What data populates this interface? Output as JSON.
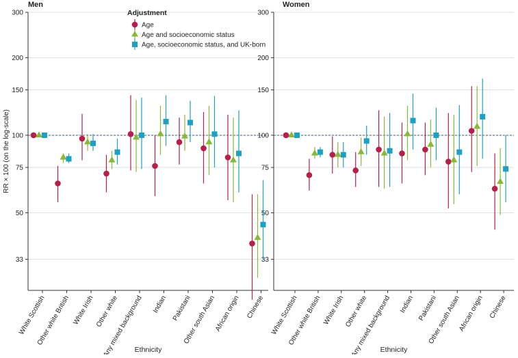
{
  "chart_data": {
    "type": "scatter",
    "subtype": "point-estimate-with-confidence-intervals",
    "ylabel": "RR × 100 (on the log-scale)",
    "xlabel": "Ethnicity",
    "yscale": "log",
    "ylim": [
      25,
      300
    ],
    "yticks": [
      33,
      50,
      75,
      100,
      150,
      200,
      300
    ],
    "reference_line": 100,
    "legend": {
      "title": "Adjustment",
      "placement": "top-left inside first panel"
    },
    "categories": [
      "White Scottish",
      "Other white British",
      "White Irish",
      "Other white",
      "Any mixed background",
      "Indian",
      "Pakistani",
      "Other south Asian",
      "African origin",
      "Chinese"
    ],
    "series_style": [
      {
        "name": "Age",
        "color": "#b5204a",
        "marker": "circle"
      },
      {
        "name": "Age and socioeconomic status",
        "color": "#8ab83a",
        "marker": "triangle"
      },
      {
        "name": "Age, socioeconomic status, and UK-born",
        "color": "#1ea0c0",
        "marker": "square"
      }
    ],
    "panels": [
      {
        "title": "Men",
        "series": [
          {
            "name": "Age",
            "values": [
              100,
              65,
              97,
              71,
              101,
              76,
              94,
              89,
              82,
              38
            ],
            "lower": [
              null,
              55,
              80,
              60,
              73,
              58,
              77,
              65,
              56,
              23
            ],
            "upper": [
              null,
              76,
              121,
              84,
              143,
              100,
              117,
              123,
              120,
              59
            ]
          },
          {
            "name": "Age and socioeconomic status",
            "values": [
              100,
              82,
              94,
              80,
              98,
              101,
              99,
              94,
              80,
              40
            ],
            "lower": [
              null,
              78,
              87,
              74,
              72,
              84,
              87,
              70,
              55,
              28
            ],
            "upper": [
              null,
              85,
              101,
              87,
              137,
              130,
              120,
              130,
              117,
              59
            ]
          },
          {
            "name": "Age, socioeconomic status, and UK-born",
            "values": [
              100,
              81,
              93,
              86,
              100,
              113,
              112,
              101,
              85,
              45
            ],
            "lower": [
              null,
              78,
              87,
              77,
              74,
              91,
              94,
              75,
              60,
              33
            ],
            "upper": [
              null,
              85,
              101,
              97,
              140,
              143,
              136,
              142,
              125,
              67
            ]
          }
        ]
      },
      {
        "title": "Women",
        "series": [
          {
            "name": "Age",
            "values": [
              100,
              70,
              84,
              73,
              88,
              85,
              88,
              79,
              104,
              62
            ],
            "lower": [
              null,
              61,
              71,
              63,
              63,
              65,
              70,
              52,
              72,
              43
            ],
            "upper": [
              null,
              81,
              99,
              86,
              125,
              112,
              112,
              122,
              155,
              85
            ]
          },
          {
            "name": "Age and socioeconomic status",
            "values": [
              100,
              85,
              84,
              86,
              85,
              101,
              92,
              80,
              108,
              66
            ],
            "lower": [
              null,
              81,
              75,
              76,
              62,
              80,
              75,
              54,
              76,
              49
            ],
            "upper": [
              null,
              90,
              94,
              98,
              118,
              130,
              115,
              120,
              155,
              89
            ]
          },
          {
            "name": "Age, socioeconomic status, and UK-born",
            "values": [
              100,
              86,
              84,
              95,
              87,
              114,
              100,
              86,
              118,
              74
            ],
            "lower": [
              null,
              82,
              75,
              84,
              63,
              88,
              80,
              59,
              81,
              55
            ],
            "upper": [
              null,
              90,
              94,
              109,
              122,
              145,
              128,
              131,
              166,
              100
            ]
          }
        ]
      }
    ]
  }
}
